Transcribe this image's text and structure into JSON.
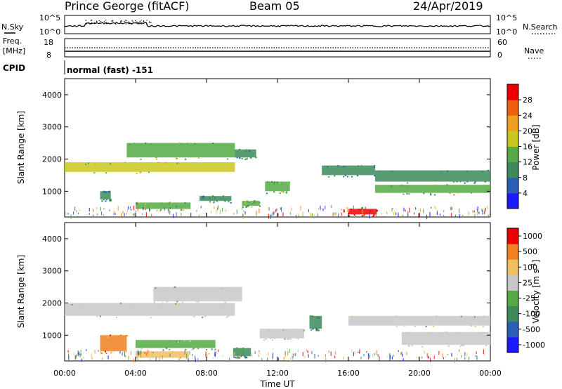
{
  "header": {
    "station": "Prince George (fitACF)",
    "beam": "Beam 05",
    "date": "24/Apr/2019"
  },
  "top_panels": {
    "nsky_label": "N.Sky",
    "nsky_ticks": [
      "10^5",
      "10^0"
    ],
    "nsearch_label": "N.Search",
    "nsearch_ticks": [
      "10^5",
      "10^0"
    ],
    "freq_label_1": "Freq.",
    "freq_label_2": "[MHz]",
    "freq_ticks": [
      "18",
      "8"
    ],
    "nave_label": "Nave",
    "nave_ticks": [
      "60",
      "0"
    ],
    "cpid_label": "CPID",
    "cpid_value": "normal (fast) -151"
  },
  "chart_data": [
    {
      "type": "heatmap",
      "name": "power",
      "ylabel": "Slant Range [km]",
      "yticks": [
        "1000",
        "2000",
        "3000",
        "4000"
      ],
      "ylim": [
        200,
        4500
      ],
      "xlim_hours": [
        0,
        24
      ],
      "colorbar_label": "Power [dB]",
      "colorbar_ticks": [
        "4",
        "8",
        "12",
        "16",
        "20",
        "24",
        "28"
      ],
      "colorbar_range": [
        0,
        32
      ],
      "colors": [
        "#1a1aff",
        "#2a5fb8",
        "#3c8a5a",
        "#55aa45",
        "#c8c820",
        "#f0a020",
        "#ee6010",
        "#ee0000"
      ],
      "echo_bands": [
        {
          "t0": 0.0,
          "t1": 9.6,
          "r0": 1600,
          "r1": 1900,
          "level": 4
        },
        {
          "t0": 3.5,
          "t1": 9.6,
          "r0": 2050,
          "r1": 2500,
          "level": 3
        },
        {
          "t0": 9.6,
          "t1": 10.8,
          "r0": 2050,
          "r1": 2300,
          "level": 2
        },
        {
          "t0": 2.0,
          "t1": 2.6,
          "r0": 750,
          "r1": 1000,
          "level": 2
        },
        {
          "t0": 4.0,
          "t1": 7.1,
          "r0": 450,
          "r1": 650,
          "level": 3
        },
        {
          "t0": 7.6,
          "t1": 9.4,
          "r0": 700,
          "r1": 850,
          "level": 2
        },
        {
          "t0": 10.0,
          "t1": 11.0,
          "r0": 550,
          "r1": 700,
          "level": 3
        },
        {
          "t0": 11.3,
          "t1": 12.7,
          "r0": 1000,
          "r1": 1300,
          "level": 3
        },
        {
          "t0": 14.5,
          "t1": 17.5,
          "r0": 1500,
          "r1": 1800,
          "level": 2
        },
        {
          "t0": 17.5,
          "t1": 24.0,
          "r0": 1300,
          "r1": 1650,
          "level": 2
        },
        {
          "t0": 17.5,
          "t1": 24.0,
          "r0": 950,
          "r1": 1200,
          "level": 3
        },
        {
          "t0": 16.0,
          "t1": 17.6,
          "r0": 280,
          "r1": 450,
          "level": 7
        }
      ]
    },
    {
      "type": "heatmap",
      "name": "velocity",
      "ylabel": "Slant Range [km]",
      "yticks": [
        "1000",
        "2000",
        "3000",
        "4000"
      ],
      "ylim": [
        200,
        4500
      ],
      "xlabel": "Time UT",
      "xticks": [
        "00:00",
        "04:00",
        "08:00",
        "12:00",
        "16:00",
        "20:00",
        "00:00"
      ],
      "colorbar_label": "Velocity [m s^-1]",
      "colorbar_ticks": [
        "1000",
        "500",
        "100",
        "25",
        "-25",
        "-100",
        "-500",
        "-1000"
      ],
      "colors": [
        "#1a1aff",
        "#2a5fb8",
        "#3c8a5a",
        "#55aa45",
        "#c8c8c8",
        "#f0c060",
        "#f08020",
        "#ee0000"
      ],
      "echo_bands": [
        {
          "t0": 0.0,
          "t1": 9.6,
          "r0": 1600,
          "r1": 2000,
          "level": 4
        },
        {
          "t0": 5.0,
          "t1": 10.0,
          "r0": 2050,
          "r1": 2500,
          "level": 4
        },
        {
          "t0": 2.0,
          "t1": 3.5,
          "r0": 500,
          "r1": 1000,
          "level": 6
        },
        {
          "t0": 4.0,
          "t1": 8.5,
          "r0": 600,
          "r1": 850,
          "level": 3
        },
        {
          "t0": 4.0,
          "t1": 7.0,
          "r0": 300,
          "r1": 500,
          "level": 5
        },
        {
          "t0": 9.5,
          "t1": 10.5,
          "r0": 350,
          "r1": 600,
          "level": 2
        },
        {
          "t0": 11.0,
          "t1": 13.5,
          "r0": 900,
          "r1": 1200,
          "level": 4
        },
        {
          "t0": 13.8,
          "t1": 14.5,
          "r0": 1200,
          "r1": 1600,
          "level": 2
        },
        {
          "t0": 16.0,
          "t1": 24.0,
          "r0": 1300,
          "r1": 1600,
          "level": 4
        },
        {
          "t0": 19.0,
          "t1": 24.0,
          "r0": 700,
          "r1": 1100,
          "level": 4
        }
      ]
    }
  ]
}
